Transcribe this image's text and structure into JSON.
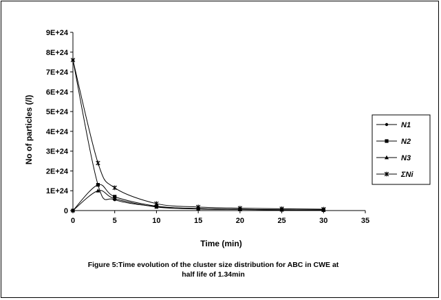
{
  "chart_data": {
    "type": "line",
    "title": "",
    "xlabel": "Time (min)",
    "ylabel": "No of particles (/l)",
    "xlim": [
      0,
      35
    ],
    "ylim": [
      0,
      9e+24
    ],
    "x_ticks": [
      "0",
      "5",
      "10",
      "15",
      "20",
      "25",
      "30",
      "35"
    ],
    "y_ticks": [
      "0",
      "1E+24",
      "2E+24",
      "3E+24",
      "4E+24",
      "5E+24",
      "6E+24",
      "7E+24",
      "8E+24",
      "9E+24"
    ],
    "x": [
      0,
      3,
      5,
      10,
      15,
      20,
      25,
      30
    ],
    "series": [
      {
        "name": "N1",
        "marker": "circle",
        "values": [
          7.6e+24,
          1.3e+24,
          5.5e+23,
          2e+23,
          1e+23,
          6e+22,
          4e+22,
          3e+22
        ]
      },
      {
        "name": "N2",
        "marker": "square",
        "values": [
          0,
          1.3e+24,
          7e+23,
          2.2e+23,
          1e+23,
          6e+22,
          4e+22,
          3e+22
        ]
      },
      {
        "name": "N3",
        "marker": "triangle",
        "values": [
          0,
          1e+24,
          6e+23,
          1.8e+23,
          8e+22,
          5e+22,
          3e+22,
          2e+22
        ]
      },
      {
        "name": "ΣNi",
        "marker": "star",
        "values": [
          7.6e+24,
          2.4e+24,
          1.15e+24,
          3.5e+23,
          1.8e+23,
          1.2e+23,
          9e+22,
          7e+22
        ]
      }
    ],
    "legend_position": "right",
    "grid": false
  },
  "caption": {
    "line1": "Figure 5:Time evolution of the cluster size distribution for  ABC in CWE at",
    "line2": "half life of 1.34min"
  }
}
